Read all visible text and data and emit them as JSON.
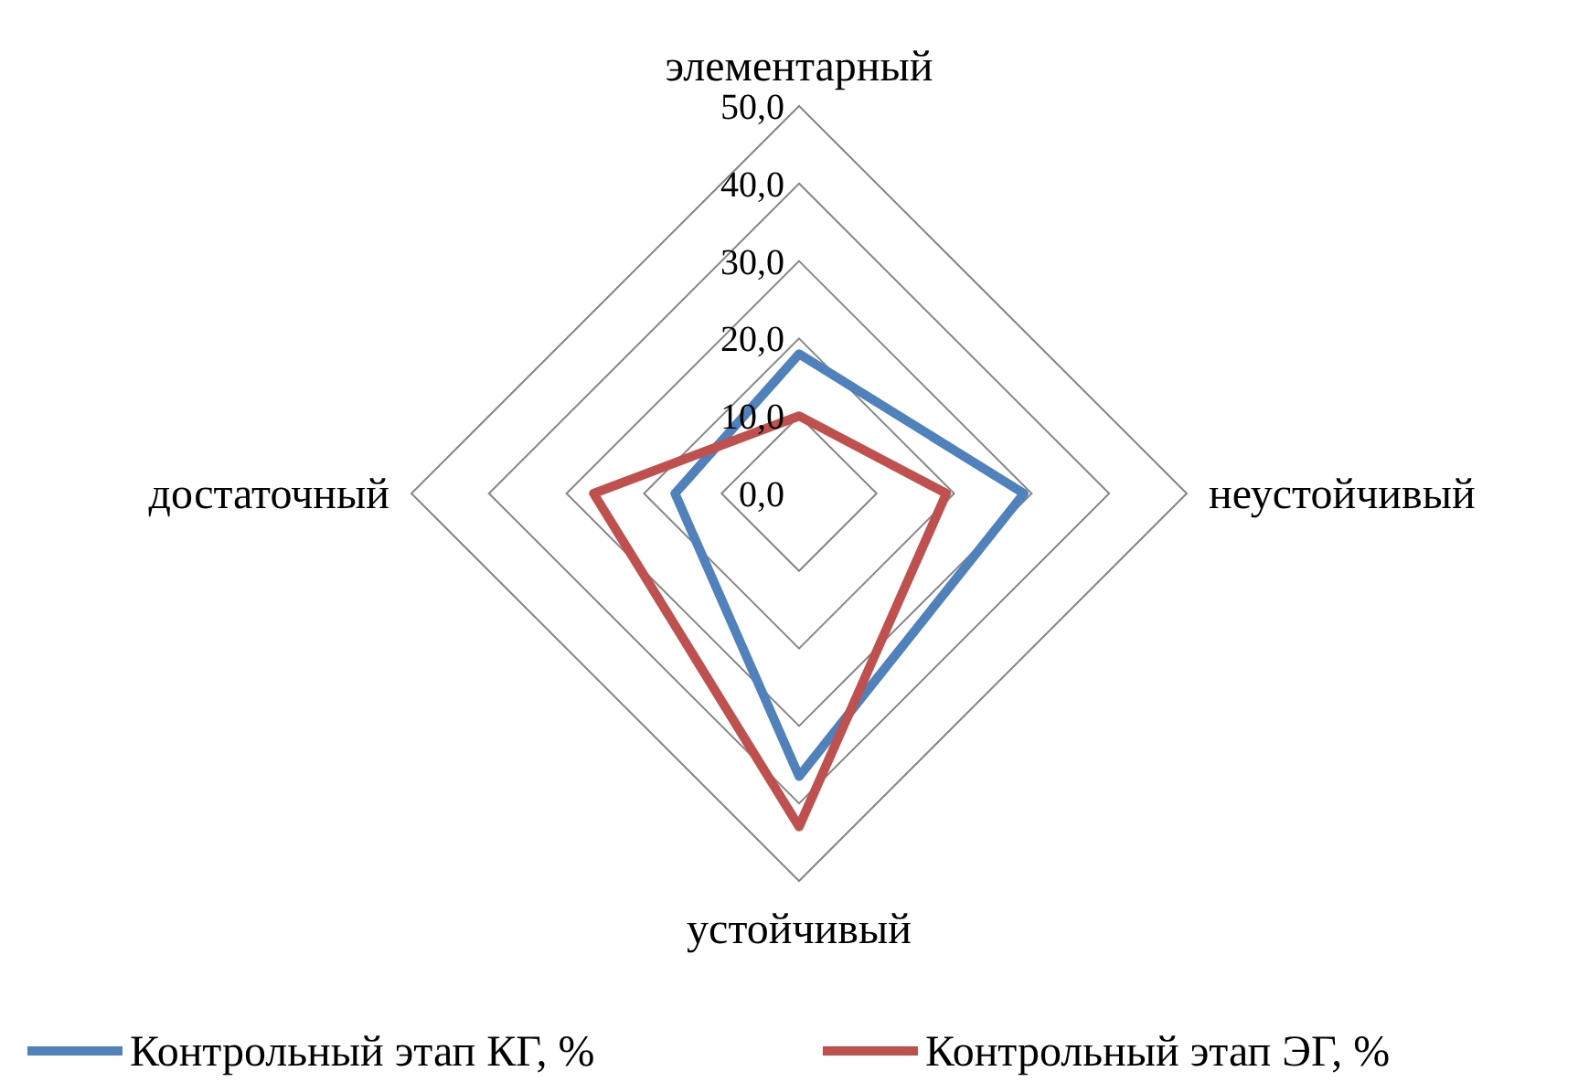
{
  "chart_data": {
    "type": "radar",
    "categories": [
      "элементарный",
      "неустойчивый",
      "устойчивый",
      "достаточный"
    ],
    "series": [
      {
        "name": "Контрольный этап КГ, %",
        "color": "#4f81bd",
        "values": [
          18,
          29,
          36.5,
          16
        ]
      },
      {
        "name": "Контрольный этап ЭГ, %",
        "color": "#c0504d",
        "values": [
          10,
          19,
          43,
          26.5
        ]
      }
    ],
    "ylim": [
      0,
      50
    ],
    "yticks": [
      {
        "value": 0,
        "label": "0,0"
      },
      {
        "value": 10,
        "label": "10,0"
      },
      {
        "value": 20,
        "label": "20,0"
      },
      {
        "value": 30,
        "label": "30,0"
      },
      {
        "value": 40,
        "label": "40,0"
      },
      {
        "value": 50,
        "label": "50,0"
      }
    ],
    "grid": true,
    "legend": "bottom",
    "marker": "none",
    "line_style": "solid"
  }
}
